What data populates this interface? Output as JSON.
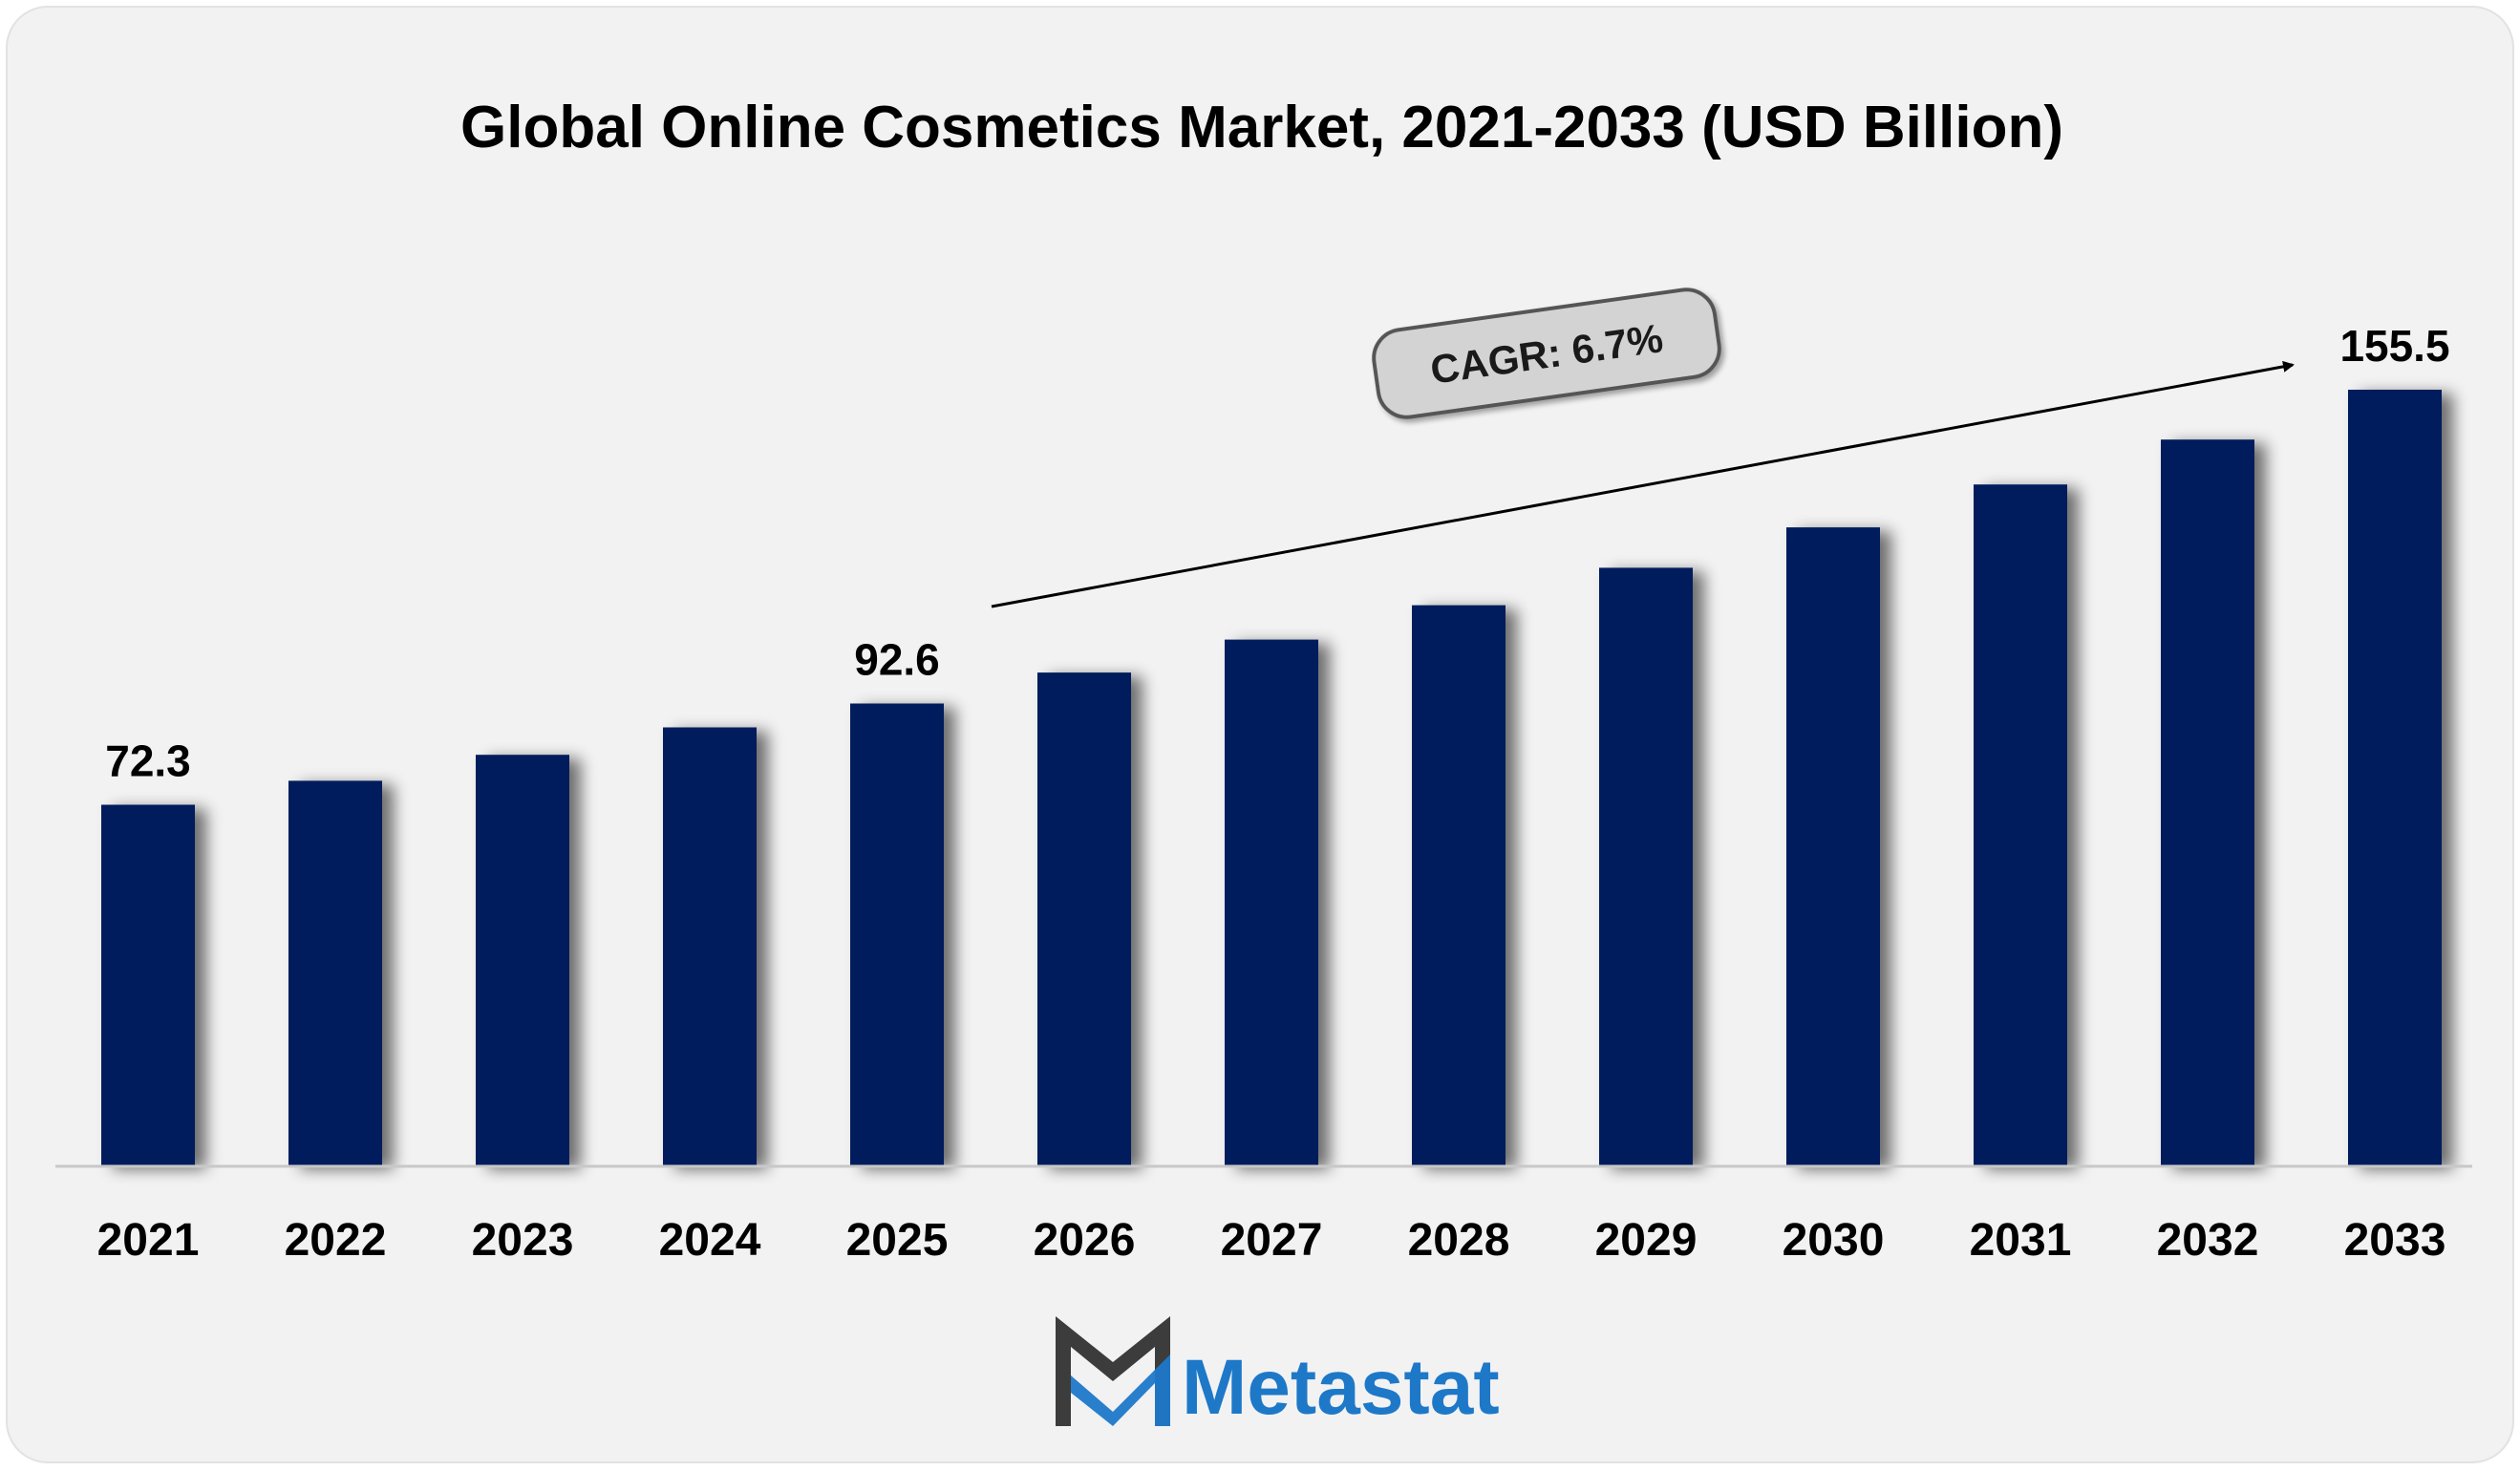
{
  "chart_data": {
    "type": "bar",
    "title": "Global Online Cosmetics Market, 2021-2033 (USD Billion)",
    "xlabel": "",
    "ylabel": "",
    "categories": [
      "2021",
      "2022",
      "2023",
      "2024",
      "2025",
      "2026",
      "2027",
      "2028",
      "2029",
      "2030",
      "2031",
      "2032",
      "2033"
    ],
    "values": [
      72.3,
      77.1,
      82.3,
      87.8,
      92.6,
      98.8,
      105.4,
      112.3,
      119.8,
      127.9,
      136.5,
      145.5,
      155.5
    ],
    "data_labels": {
      "0": "72.3",
      "4": "92.6",
      "12": "155.5"
    },
    "ylim": [
      0,
      155.5
    ],
    "grid": false,
    "legend": "none",
    "annotation": {
      "text": "CAGR: 6.7%"
    },
    "colors": {
      "bar": "#021f5c",
      "annotation_fill": "#d3d3d3",
      "annotation_border": "#555555"
    }
  },
  "branding": {
    "logo_text": "Metastat",
    "logo_icon": "m-logo-icon",
    "colors": {
      "text": "#1e78c8",
      "icon_dark": "#3c3c3c",
      "icon_blue": "#1e78c8"
    }
  }
}
